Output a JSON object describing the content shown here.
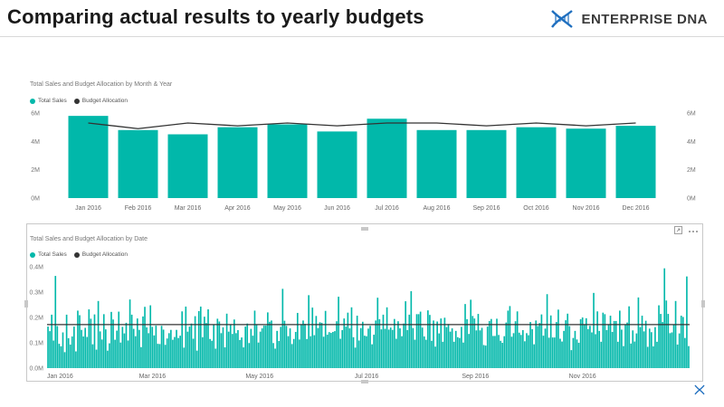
{
  "page": {
    "title": "Comparing actual results to yearly budgets"
  },
  "brand": {
    "name": "ENTERPRISE DNA",
    "icon": "dna-helix-icon",
    "color": "#1f6fbf"
  },
  "colors": {
    "sales": "#01b8aa",
    "budget": "#333333"
  },
  "chart_data": [
    {
      "type": "bar",
      "title": "Total Sales and Budget Allocation by Month & Year",
      "legend_placement": "top-left",
      "categories": [
        "Jan 2016",
        "Feb 2016",
        "Mar 2016",
        "Apr 2016",
        "May 2016",
        "Jun 2016",
        "Jul 2016",
        "Aug 2016",
        "Sep 2016",
        "Oct 2016",
        "Nov 2016",
        "Dec 2016"
      ],
      "series": [
        {
          "name": "Total Sales",
          "type": "bar",
          "values": [
            5.8,
            4.8,
            4.5,
            5.0,
            5.2,
            4.7,
            5.6,
            4.8,
            4.8,
            5.0,
            4.9,
            5.1
          ]
        },
        {
          "name": "Budget Allocation",
          "type": "line",
          "values": [
            5.3,
            4.9,
            5.3,
            5.1,
            5.3,
            5.1,
            5.3,
            5.3,
            5.1,
            5.3,
            5.1,
            5.3
          ]
        }
      ],
      "unit": "M",
      "ylim": [
        0,
        6
      ],
      "yticks": [
        "0M",
        "2M",
        "4M",
        "6M"
      ],
      "y2ticks": [
        "0M",
        "2M",
        "4M",
        "6M"
      ],
      "grid": false
    },
    {
      "type": "bar",
      "title": "Total Sales and Budget Allocation by Date",
      "legend_placement": "top-left",
      "x_start": "2016-01-01",
      "x_end": "2016-12-31",
      "xticks": [
        "Jan 2016",
        "Mar 2016",
        "May 2016",
        "Jul 2016",
        "Sep 2016",
        "Nov 2016"
      ],
      "series": [
        {
          "name": "Total Sales",
          "type": "bar",
          "values": [
            0.164,
            0.146,
            0.211,
            0.109,
            0.364,
            0.166,
            0.096,
            0.086,
            0.141,
            0.063,
            0.211,
            0.118,
            0.093,
            0.125,
            0.164,
            0.066,
            0.227,
            0.209,
            0.151,
            0.125,
            0.159,
            0.123,
            0.232,
            0.195,
            0.094,
            0.212,
            0.073,
            0.265,
            0.145,
            0.113,
            0.213,
            0.153,
            0.069,
            0.098,
            0.222,
            0.192,
            0.112,
            0.148,
            0.223,
            0.101,
            0.163,
            0.137,
            0.179,
            0.109,
            0.271,
            0.211,
            0.155,
            0.126,
            0.196,
            0.151,
            0.083,
            0.204,
            0.242,
            0.161,
            0.138,
            0.248,
            0.163,
            0.129,
            0.168,
            0.096,
            0.095,
            0.167,
            0.152,
            0.092,
            0.117,
            0.138,
            0.151,
            0.112,
            0.123,
            0.151,
            0.119,
            0.128,
            0.224,
            0.081,
            0.243,
            0.144,
            0.164,
            0.176,
            0.116,
            0.205,
            0.069,
            0.225,
            0.243,
            0.122,
            0.203,
            0.178,
            0.232,
            0.115,
            0.108,
            0.171,
            0.077,
            0.195,
            0.184,
            0.138,
            0.161,
            0.082,
            0.215,
            0.144,
            0.172,
            0.135,
            0.192,
            0.138,
            0.15,
            0.111,
            0.121,
            0.082,
            0.164,
            0.176,
            0.099,
            0.155,
            0.128,
            0.227,
            0.171,
            0.101,
            0.144,
            0.157,
            0.168,
            0.168,
            0.22,
            0.183,
            0.188,
            0.099,
            0.077,
            0.147,
            0.107,
            0.163,
            0.313,
            0.187,
            0.167,
            0.126,
            0.157,
            0.095,
            0.115,
            0.143,
            0.218,
            0.113,
            0.172,
            0.188,
            0.175,
            0.115,
            0.288,
            0.126,
            0.239,
            0.13,
            0.206,
            0.158,
            0.181,
            0.179,
            0.124,
            0.226,
            0.132,
            0.142,
            0.139,
            0.143,
            0.146,
            0.185,
            0.282,
            0.116,
            0.15,
            0.196,
            0.164,
            0.219,
            0.157,
            0.24,
            0.122,
            0.081,
            0.207,
            0.109,
            0.158,
            0.183,
            0.128,
            0.126,
            0.156,
            0.167,
            0.094,
            0.132,
            0.188,
            0.278,
            0.193,
            0.153,
            0.211,
            0.155,
            0.24,
            0.152,
            0.16,
            0.151,
            0.194,
            0.116,
            0.185,
            0.157,
            0.126,
            0.176,
            0.264,
            0.15,
            0.211,
            0.304,
            0.158,
            0.112,
            0.213,
            0.213,
            0.223,
            0.16,
            0.125,
            0.112,
            0.228,
            0.21,
            0.108,
            0.188,
            0.085,
            0.184,
            0.137,
            0.196,
            0.104,
            0.199,
            0.162,
            0.174,
            0.144,
            0.157,
            0.104,
            0.147,
            0.122,
            0.119,
            0.163,
            0.101,
            0.253,
            0.193,
            0.135,
            0.27,
            0.206,
            0.196,
            0.149,
            0.214,
            0.149,
            0.159,
            0.091,
            0.089,
            0.164,
            0.186,
            0.194,
            0.127,
            0.127,
            0.195,
            0.131,
            0.108,
            0.1,
            0.126,
            0.18,
            0.227,
            0.245,
            0.124,
            0.138,
            0.185,
            0.224,
            0.14,
            0.131,
            0.15,
            0.106,
            0.138,
            0.13,
            0.182,
            0.154,
            0.094,
            0.188,
            0.166,
            0.178,
            0.212,
            0.128,
            0.156,
            0.292,
            0.12,
            0.208,
            0.121,
            0.121,
            0.182,
            0.231,
            0.116,
            0.105,
            0.147,
            0.189,
            0.215,
            0.166,
            0.071,
            0.119,
            0.147,
            0.113,
            0.1,
            0.193,
            0.2,
            0.17,
            0.197,
            0.154,
            0.167,
            0.141,
            0.297,
            0.134,
            0.224,
            0.147,
            0.104,
            0.219,
            0.213,
            0.15,
            0.17,
            0.207,
            0.143,
            0.186,
            0.186,
            0.104,
            0.227,
            0.152,
            0.087,
            0.171,
            0.18,
            0.244,
            0.097,
            0.149,
            0.105,
            0.137,
            0.279,
            0.162,
            0.207,
            0.145,
            0.187,
            0.084,
            0.156,
            0.142,
            0.086,
            0.162,
            0.104,
            0.248,
            0.214,
            0.182,
            0.394,
            0.267,
            0.214,
            0.138,
            0.141,
            0.173,
            0.265,
            0.093,
            0.137,
            0.207,
            0.202,
            0.119,
            0.362,
            0.087
          ]
        },
        {
          "name": "Budget Allocation",
          "type": "line",
          "value": 0.172
        }
      ],
      "unit": "M",
      "ylim": [
        0,
        0.4
      ],
      "yticks": [
        "0.0M",
        "0.1M",
        "0.2M",
        "0.3M",
        "0.4M"
      ],
      "grid": false
    }
  ]
}
